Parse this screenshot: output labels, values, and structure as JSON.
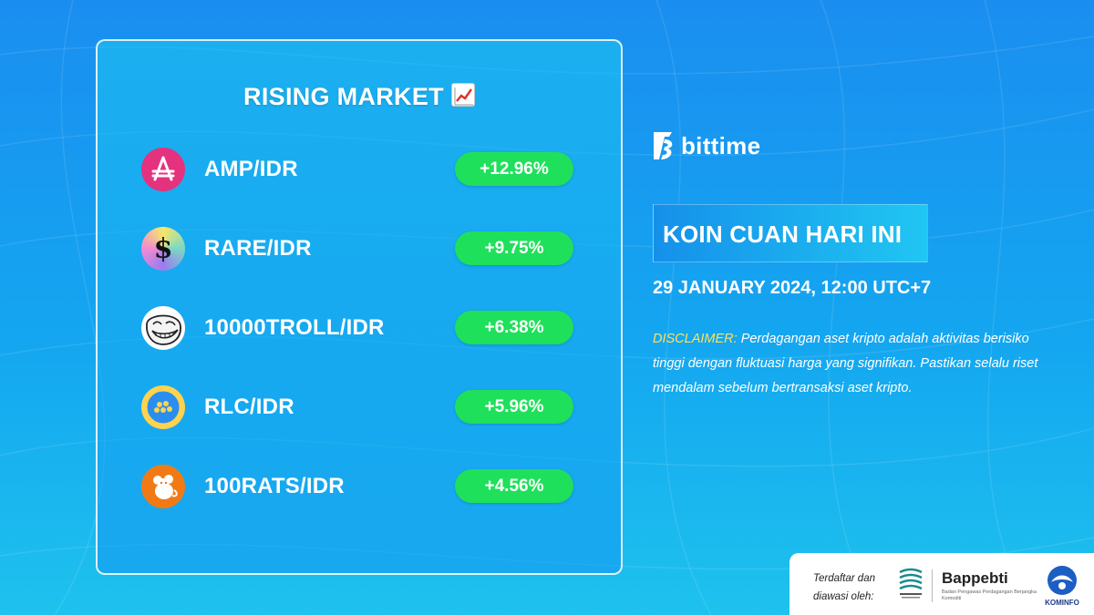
{
  "card": {
    "title": "RISING MARKET",
    "title_icon": "chart-increasing-icon",
    "rows": [
      {
        "pair": "AMP/IDR",
        "change": "+12.96%",
        "icon": "amp-coin-icon",
        "color": "#e4327f"
      },
      {
        "pair": "RARE/IDR",
        "change": "+9.75%",
        "icon": "rare-coin-icon",
        "color": "#7ad8c7"
      },
      {
        "pair": "10000TROLL/IDR",
        "change": "+6.38%",
        "icon": "troll-coin-icon",
        "color": "#ffffff"
      },
      {
        "pair": "RLC/IDR",
        "change": "+5.96%",
        "icon": "rlc-coin-icon",
        "color": "#ffd34e"
      },
      {
        "pair": "100RATS/IDR",
        "change": "+4.56%",
        "icon": "rats-coin-icon",
        "color": "#f27a15"
      }
    ],
    "change_color": "#1fe05a"
  },
  "brand": {
    "name": "bittime",
    "icon": "bittime-logo-icon"
  },
  "headline": "KOIN CUAN HARI INI",
  "date": "29 JANUARY 2024, 12:00 UTC+7",
  "disclaimer": {
    "label": "DISCLAIMER:",
    "text": " Perdagangan aset kripto adalah aktivitas berisiko tinggi dengan fluktuasi harga yang signifikan. Pastikan selalu riset mendalam sebelum bertransaksi aset kripto."
  },
  "footer": {
    "registered_text": "Terdaftar dan diawasi oleh:",
    "bappebti_name": "Bappebti",
    "bappebti_sub": "Badan Pengawas Perdagangan Berjangka Komoditi",
    "kominfo_label": "KOMINFO"
  },
  "colors": {
    "accent": "#ffe15a",
    "background": "#1a9cf0"
  }
}
